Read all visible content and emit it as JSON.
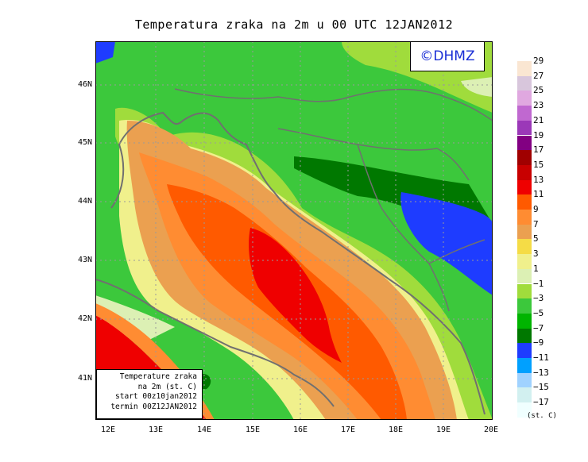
{
  "title": "Temperatura zraka na 2m u 00 UTC 12JAN2012",
  "logo_text": "©DHMZ",
  "info_box": [
    "Temperature zraka",
    "na 2m (st. C)",
    "start 00z10jan2012",
    "termin 00Z12JAN2012"
  ],
  "lat_labels": [
    "46N",
    "45N",
    "44N",
    "43N",
    "42N",
    "41N"
  ],
  "lon_labels": [
    "12E",
    "13E",
    "14E",
    "15E",
    "16E",
    "17E",
    "18E",
    "19E",
    "20E"
  ],
  "legend": {
    "labels": [
      "29",
      "27",
      "25",
      "23",
      "21",
      "19",
      "17",
      "15",
      "13",
      "11",
      "9",
      "7",
      "5",
      "3",
      "1",
      "−1",
      "−3",
      "−5",
      "−7",
      "−9",
      "−11",
      "−13",
      "−15",
      "−17"
    ],
    "colors": [
      "#fae6d2",
      "#d8c6dc",
      "#e0a8e0",
      "#c068d0",
      "#9b38b8",
      "#820082",
      "#a00000",
      "#c80000",
      "#ef0000",
      "#ff5a00",
      "#ff8c32",
      "#eba050",
      "#f5dc46",
      "#f0f08c",
      "#dcf0b4",
      "#a0dc3c",
      "#3cc83c",
      "#00b400",
      "#007800",
      "#1e3cff",
      "#00a0ff",
      "#a0d2ff",
      "#d2f0f0",
      "#f0ffff"
    ],
    "unit": "(st. C)"
  },
  "field_colors": {
    "green": "#00b400",
    "dark_green": "#007800",
    "light_green": "#a0dc3c",
    "pale": "#dcf0b4",
    "yellow": "#f0f08c",
    "warm_orange": "#eba050",
    "orange": "#ff8c32",
    "red_orange": "#ff5a00",
    "red": "#ef0000",
    "blue": "#1e3cff"
  }
}
